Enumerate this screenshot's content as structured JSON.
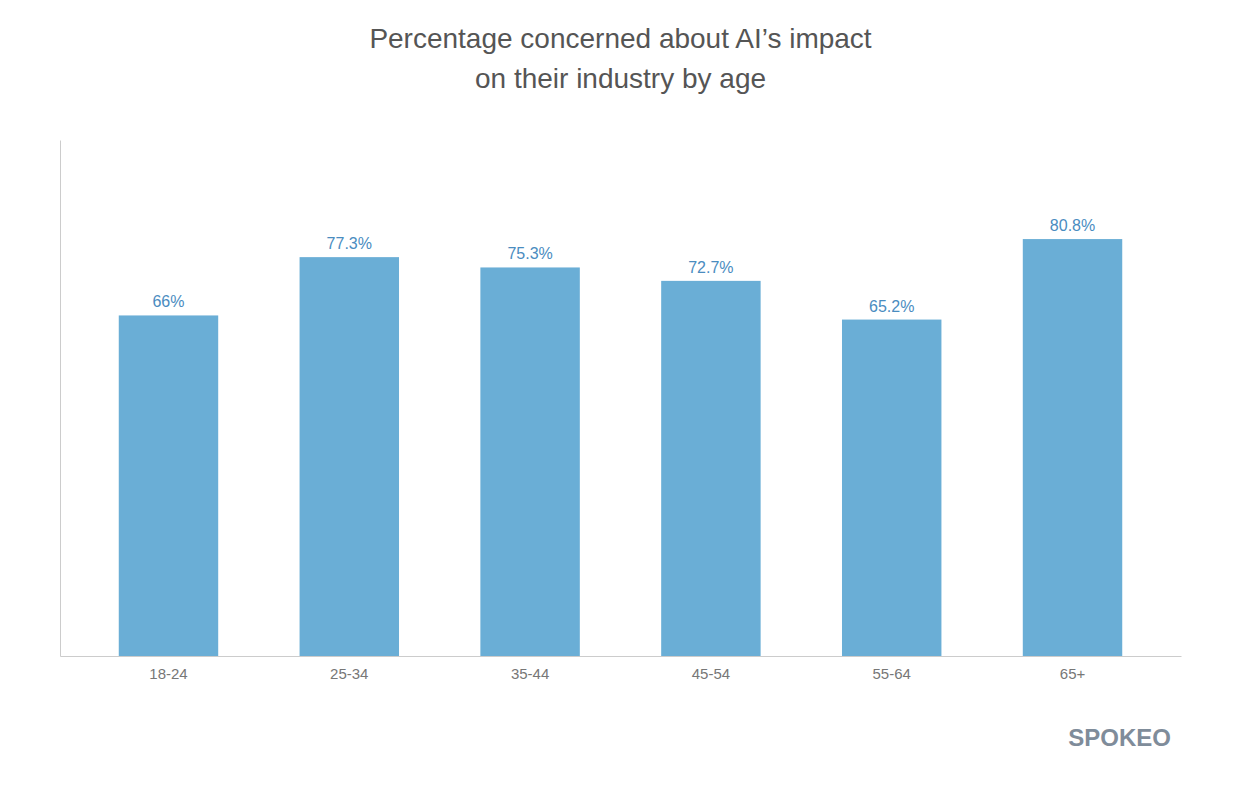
{
  "chart_data": {
    "type": "bar",
    "title": "Percentage concerned about AI’s impact",
    "subtitle": "on their industry by age",
    "categories": [
      "18-24",
      "25-34",
      "35-44",
      "45-54",
      "55-64",
      "65+"
    ],
    "values": [
      66.0,
      77.3,
      75.3,
      72.7,
      65.2,
      80.8
    ],
    "value_labels": [
      "66%",
      "77.3%",
      "75.3%",
      "72.7%",
      "65.2%",
      "80.8%"
    ],
    "data_labels": true,
    "color": "#6aaed6",
    "ylim": [
      0,
      100
    ],
    "grid": false,
    "tick_labels": "x",
    "annotations": [
      "SPOKEO"
    ]
  }
}
